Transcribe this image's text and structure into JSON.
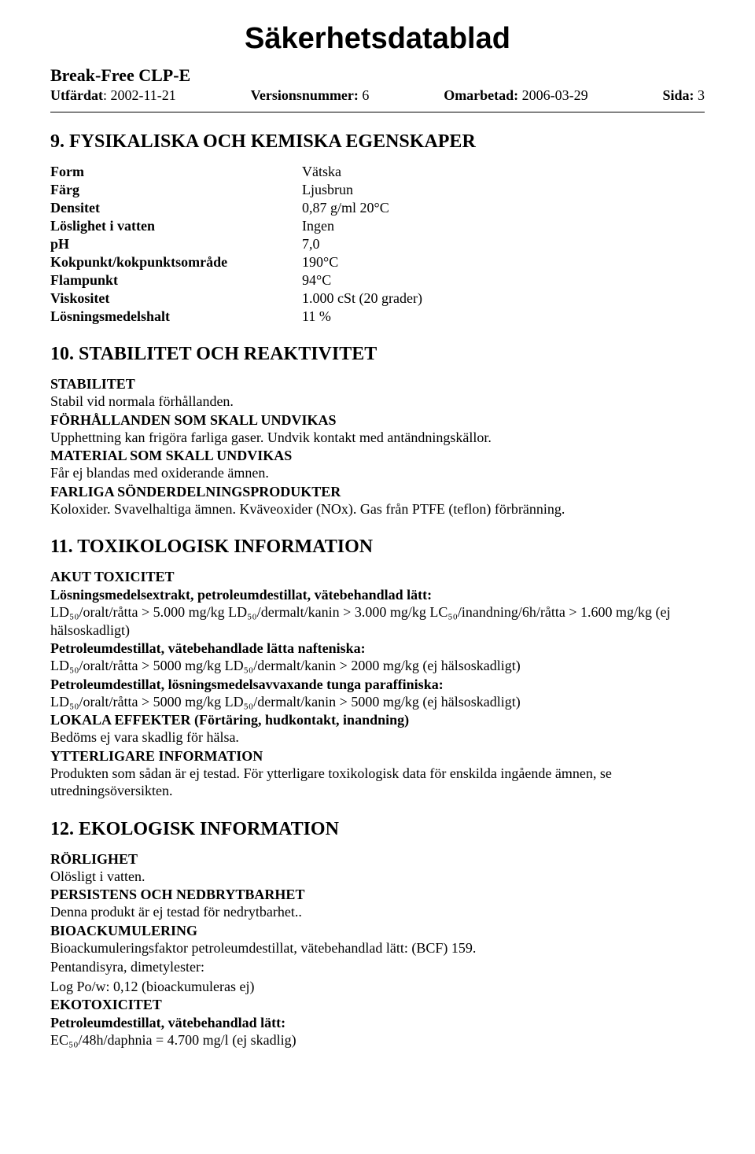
{
  "doc": {
    "title": "Säkerhetsdatablad",
    "product": "Break-Free CLP-E",
    "issued_label": "Utfärdat",
    "issued_value": ": 2002-11-21",
    "version_label": "Versionsnummer:",
    "version_value": " 6",
    "revised_label": "Omarbetad:",
    "revised_value": " 2006-03-29",
    "page_label": "Sida:",
    "page_value": " 3"
  },
  "section9": {
    "heading": "9. FYSIKALISKA OCH KEMISKA EGENSKAPER",
    "rows": [
      {
        "key": "Form",
        "val": "Vätska"
      },
      {
        "key": "Färg",
        "val": "Ljusbrun"
      },
      {
        "key": "Densitet",
        "val": "0,87 g/ml 20°C"
      },
      {
        "key": "Löslighet i vatten",
        "val": "Ingen"
      },
      {
        "key": "pH",
        "val": "7,0"
      },
      {
        "key": "Kokpunkt/kokpunktsområde",
        "val": "190°C"
      },
      {
        "key": "Flampunkt",
        "val": "94°C"
      },
      {
        "key": "Viskositet",
        "val": "1.000 cSt (20 grader)"
      },
      {
        "key": "Lösningsmedelshalt",
        "val": "11 %"
      }
    ]
  },
  "section10": {
    "heading": "10. STABILITET OCH REAKTIVITET",
    "p1_label": "STABILITET",
    "p1_text": "Stabil vid normala förhållanden.",
    "p2_label": "FÖRHÅLLANDEN SOM SKALL UNDVIKAS",
    "p2_text": "Upphettning kan frigöra farliga gaser. Undvik kontakt med antändningskällor.",
    "p3_label": "MATERIAL SOM SKALL UNDVIKAS",
    "p3_text": "Får ej blandas med oxiderande ämnen.",
    "p4_label": "FARLIGA SÖNDERDELNINGSPRODUKTER",
    "p4_text": "Koloxider. Svavelhaltiga ämnen. Kväveoxider (NOx). Gas från PTFE (teflon) förbränning."
  },
  "section11": {
    "heading": "11. TOXIKOLOGISK INFORMATION",
    "akut_label": "AKUT TOXICITET",
    "sub1_label": "Lösningsmedelsextrakt, petroleumdestillat, vätebehandlad lätt:",
    "sub1_text": "LD₅₀/oralt/råtta > 5.000 mg/kg LD₅₀/dermalt/kanin > 3.000 mg/kg LC₅₀/inandning/6h/råtta  > 1.600 mg/kg (ej hälsoskadligt)",
    "sub2_label": "Petroleumdestillat, vätebehandlade lätta nafteniska:",
    "sub2_text": "LD₅₀/oralt/råtta > 5000 mg/kg LD₅₀/dermalt/kanin > 2000 mg/kg (ej hälsoskadligt)",
    "sub3_label": "Petroleumdestillat, lösningsmedelsavvaxande tunga paraffiniska:",
    "sub3_text": "LD₅₀/oralt/råtta > 5000 mg/kg LD₅₀/dermalt/kanin > 5000 mg/kg (ej hälsoskadligt)",
    "lokala_label": "LOKALA EFFEKTER (Förtäring, hudkontakt, inandning)",
    "lokala_text": "Bedöms ej vara skadlig för hälsa.",
    "ytter_label": "YTTERLIGARE INFORMATION",
    "ytter_text": "Produkten som sådan är ej testad. För ytterligare toxikologisk data för enskilda ingående ämnen, se utredningsöversikten."
  },
  "section12": {
    "heading": "12. EKOLOGISK INFORMATION",
    "rorlighet_label": "RÖRLIGHET",
    "rorlighet_text": "Olösligt i vatten.",
    "persist_label": "PERSISTENS OCH NEDBRYTBARHET",
    "persist_text": "Denna produkt är ej testad för nedrytbarhet..",
    "bioack_label": "BIOACKUMULERING",
    "bioack_text": "Bioackumuleringsfaktor petroleumdestillat, vätebehandlad lätt: (BCF) 159.",
    "pentan_line1": "Pentandisyra, dimetylester:",
    "pentan_line2": "Log Po/w: 0,12 (bioackumuleras ej)",
    "ekotox_label": "EKOTOXICITET",
    "ekotox_sub_label": "Petroleumdestillat, vätebehandlad lätt:",
    "ekotox_text": "EC₅₀/48h/daphnia = 4.700 mg/l (ej skadlig)"
  }
}
